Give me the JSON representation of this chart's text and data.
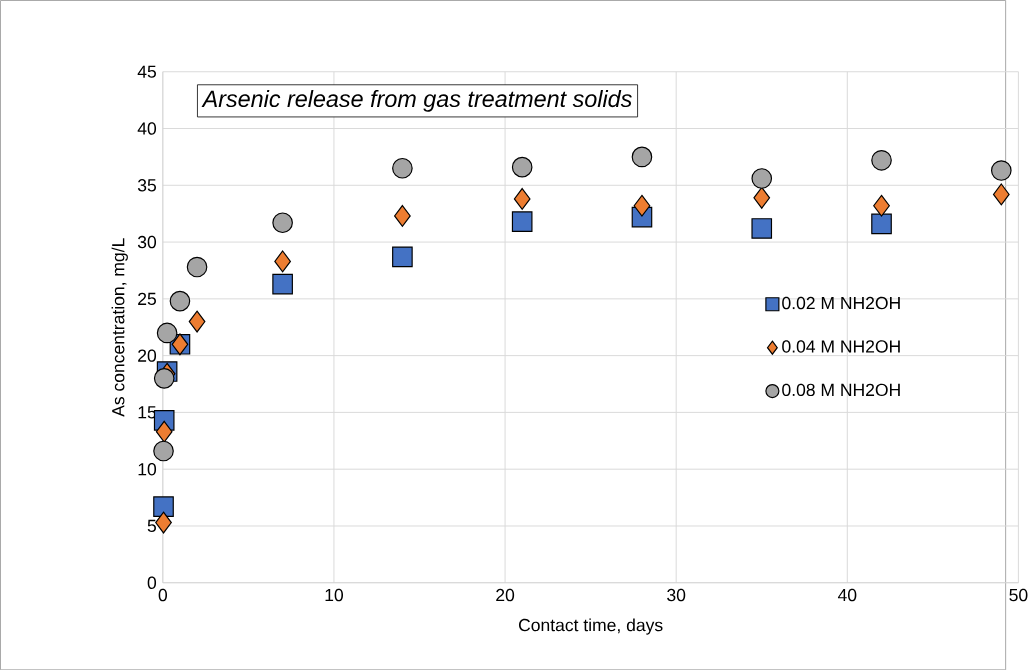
{
  "chart_data": {
    "type": "scatter",
    "title": "Arsenic release from gas treatment solids",
    "xlabel": "Contact time, days",
    "ylabel": "As concentration, mg/L",
    "x": [
      0.04,
      0.08,
      0.25,
      1,
      2,
      7,
      14,
      21,
      28,
      35,
      42,
      49
    ],
    "series": [
      {
        "name": "0.02 M NH2OH",
        "color": "#4472c4",
        "marker": "square",
        "values": [
          6.7,
          14.3,
          18.6,
          21.0,
          null,
          26.3,
          28.7,
          31.8,
          32.2,
          31.2,
          31.6,
          null
        ]
      },
      {
        "name": "0.04 M NH2OH",
        "color": "#ed7d31",
        "marker": "diamond",
        "values": [
          5.3,
          13.3,
          18.4,
          21.0,
          23.0,
          28.3,
          32.3,
          33.8,
          33.2,
          33.9,
          33.2,
          34.2
        ]
      },
      {
        "name": "0.08 M NH2OH",
        "color": "#a5a5a5",
        "marker": "circle",
        "values": [
          11.6,
          18.0,
          22.0,
          24.8,
          27.8,
          31.7,
          36.5,
          36.6,
          37.5,
          35.6,
          37.2,
          36.3
        ]
      }
    ],
    "xlim": [
      0,
      50
    ],
    "xticks": [
      0,
      10,
      20,
      30,
      40,
      50
    ],
    "ylim": [
      0,
      45
    ],
    "yticks": [
      0,
      5,
      10,
      15,
      20,
      25,
      30,
      35,
      40,
      45
    ],
    "grid": true,
    "legend": "right"
  }
}
